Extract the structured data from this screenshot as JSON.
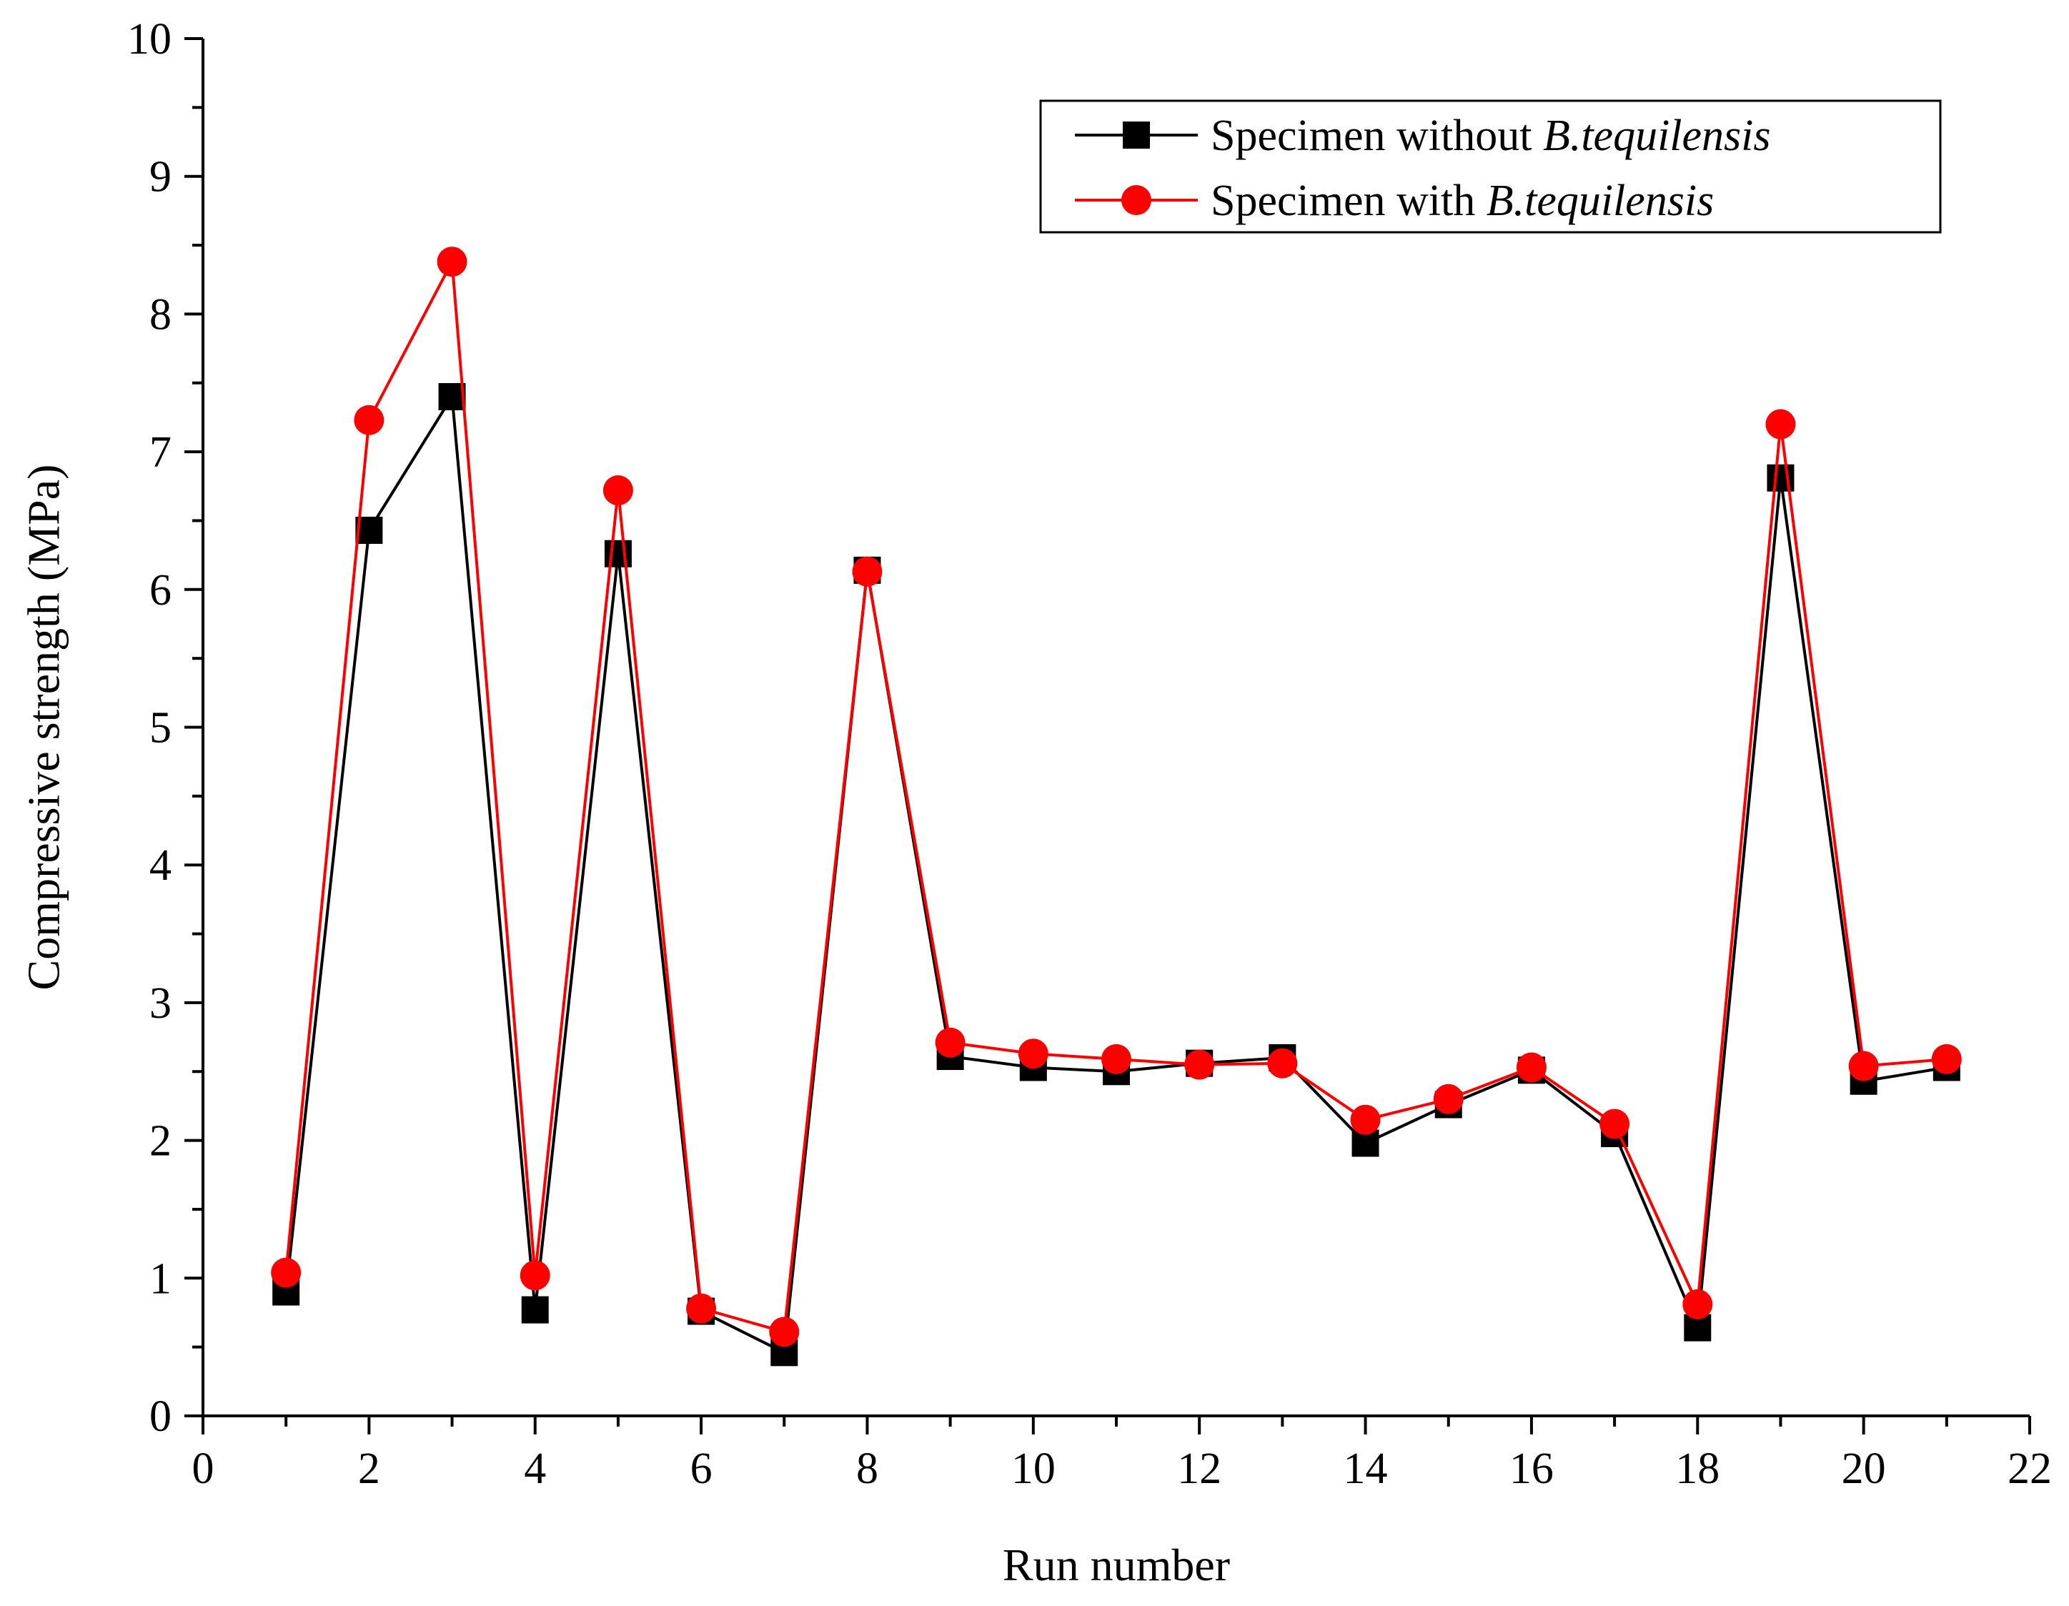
{
  "chart_data": {
    "type": "line",
    "title": "",
    "xlabel": "Run number",
    "ylabel": "Compressive strength (MPa)",
    "xlim": [
      0,
      22
    ],
    "ylim": [
      0,
      10
    ],
    "x_ticks": [
      0,
      2,
      4,
      6,
      8,
      10,
      12,
      14,
      16,
      18,
      20,
      22
    ],
    "y_ticks": [
      0,
      1,
      2,
      3,
      4,
      5,
      6,
      7,
      8,
      9,
      10
    ],
    "grid": false,
    "legend_position": "top-right",
    "x": [
      1,
      2,
      3,
      4,
      5,
      6,
      7,
      8,
      9,
      10,
      11,
      12,
      13,
      14,
      15,
      16,
      17,
      18,
      19,
      20,
      21
    ],
    "series": [
      {
        "name_prefix": "Specimen without ",
        "name_italic": "B.tequilensis",
        "color": "#000000",
        "marker": "square",
        "values": [
          0.9,
          6.43,
          7.4,
          0.77,
          6.26,
          0.76,
          0.46,
          6.14,
          2.61,
          2.53,
          2.5,
          2.56,
          2.6,
          1.98,
          2.26,
          2.51,
          2.05,
          0.64,
          6.81,
          2.43,
          2.53
        ]
      },
      {
        "name_prefix": "Specimen with ",
        "name_italic": "B.tequilensis",
        "color": "#ff0000",
        "marker": "circle",
        "values": [
          1.04,
          7.23,
          8.38,
          1.02,
          6.72,
          0.78,
          0.61,
          6.13,
          2.71,
          2.63,
          2.59,
          2.55,
          2.56,
          2.15,
          2.3,
          2.53,
          2.12,
          0.81,
          7.2,
          2.54,
          2.59
        ]
      }
    ]
  }
}
